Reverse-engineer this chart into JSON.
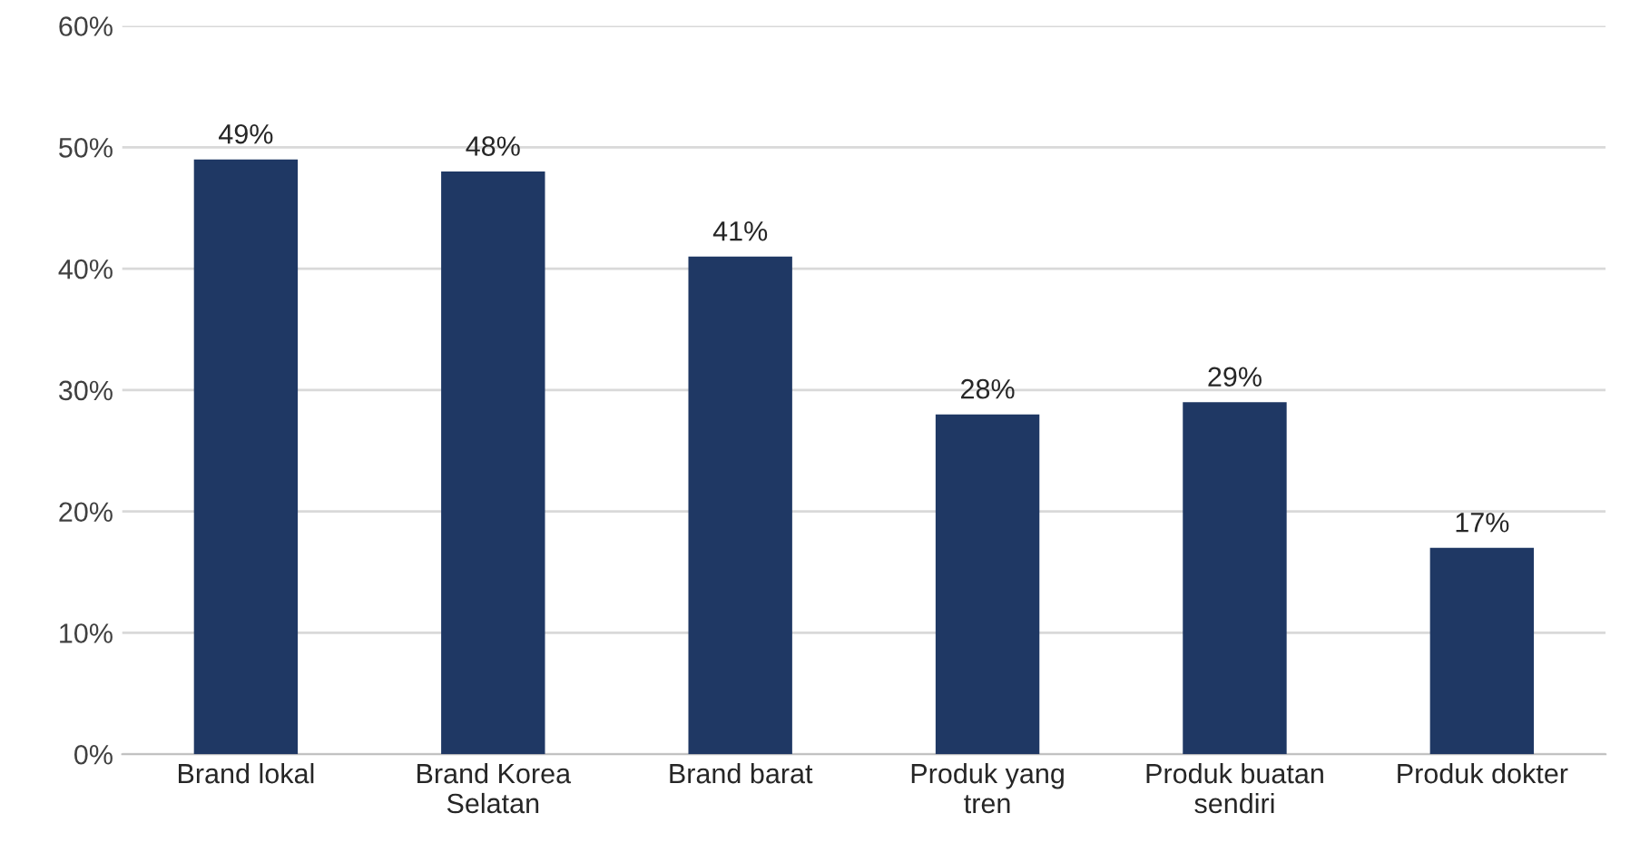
{
  "chart_data": {
    "type": "bar",
    "categories": [
      "Brand lokal",
      "Brand Korea Selatan",
      "Brand barat",
      "Produk yang tren",
      "Produk buatan sendiri",
      "Produk dokter"
    ],
    "values": [
      49,
      48,
      41,
      28,
      29,
      17
    ],
    "value_labels": [
      "49%",
      "48%",
      "41%",
      "28%",
      "29%",
      "17%"
    ],
    "color": "#1f3864",
    "ylim": [
      0,
      60
    ],
    "yticks": [
      {
        "value": 0,
        "label": "0%"
      },
      {
        "value": 10,
        "label": "10%"
      },
      {
        "value": 20,
        "label": "20%"
      },
      {
        "value": 30,
        "label": "30%"
      },
      {
        "value": 40,
        "label": "40%"
      },
      {
        "value": 50,
        "label": "50%"
      },
      {
        "value": 60,
        "label": "60%"
      }
    ],
    "grid": "y"
  }
}
